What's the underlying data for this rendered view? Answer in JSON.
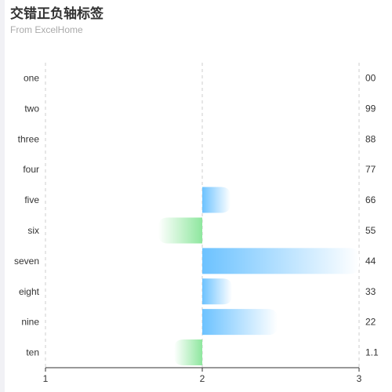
{
  "chart_data": {
    "type": "bar",
    "orientation": "horizontal",
    "title": "交错正负轴标签",
    "subtitle": "From ExcelHome",
    "categories": [
      "one",
      "two",
      "three",
      "four",
      "five",
      "six",
      "seven",
      "eight",
      "nine",
      "ten"
    ],
    "right_labels": [
      "00",
      "99",
      "88",
      "77",
      "66",
      "55",
      "44",
      "33",
      "22",
      "1.1"
    ],
    "baseline": 2,
    "values": [
      2,
      2,
      2,
      2,
      2.18,
      1.72,
      3,
      2.19,
      2.48,
      1.82
    ],
    "xlim": [
      1,
      3
    ],
    "xticks": [
      "1",
      "2",
      "3"
    ],
    "grid": true,
    "colors": {
      "positive_start": "#6cc2ff",
      "positive_end": "#ffffff",
      "negative_start": "#8ee79e",
      "negative_end": "#ffffff"
    }
  }
}
